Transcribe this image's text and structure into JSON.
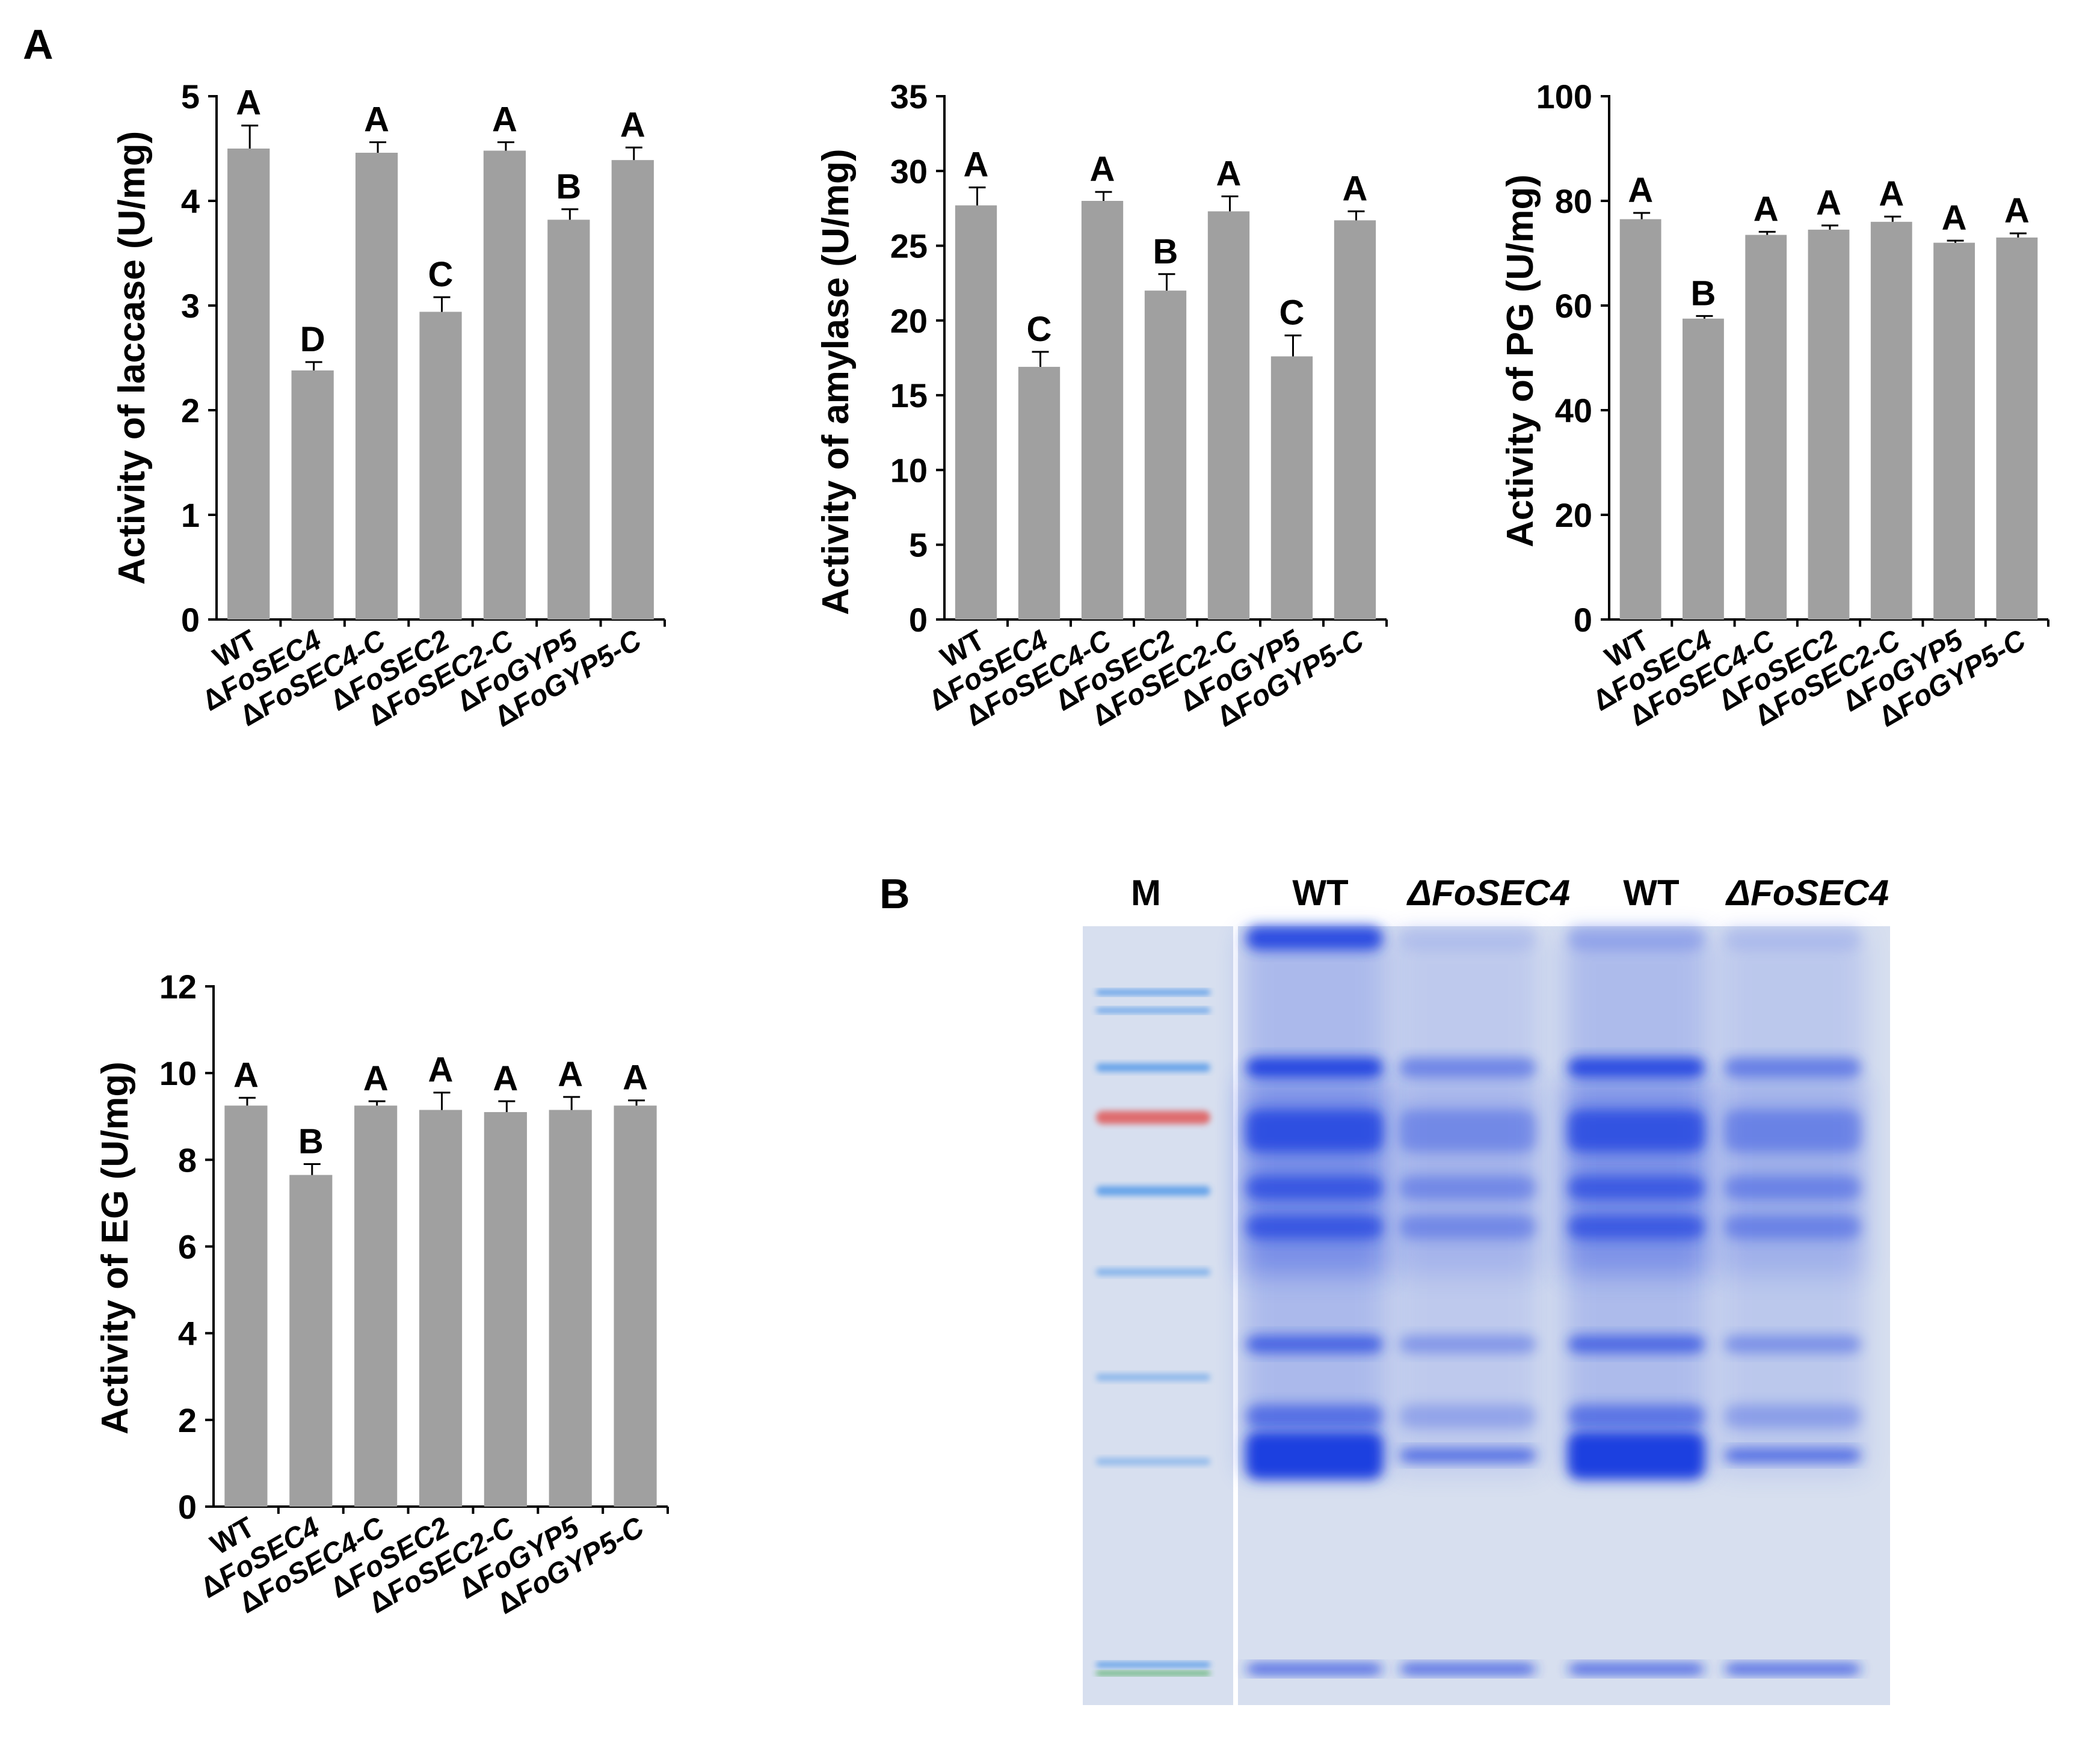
{
  "panels": {
    "a": "A",
    "b": "B"
  },
  "chart_data": [
    {
      "type": "bar",
      "categories": [
        "WT",
        "ΔFoSEC4",
        "ΔFoSEC4-C",
        "ΔFoSEC2",
        "ΔFoSEC2-C",
        "ΔFoGYP5",
        "ΔFoGYP5-C"
      ],
      "values": [
        4.5,
        2.38,
        4.46,
        2.94,
        4.48,
        3.82,
        4.39
      ],
      "errors": [
        0.22,
        0.08,
        0.1,
        0.14,
        0.08,
        0.1,
        0.12
      ],
      "letters": [
        "A",
        "D",
        "A",
        "C",
        "A",
        "B",
        "A"
      ],
      "ylabel": "Activity of laccase (U/mg)",
      "ylim": [
        0,
        5
      ],
      "yticks": [
        0,
        1,
        2,
        3,
        4,
        5
      ],
      "grid": false
    },
    {
      "type": "bar",
      "categories": [
        "WT",
        "ΔFoSEC4",
        "ΔFoSEC4-C",
        "ΔFoSEC2",
        "ΔFoSEC2-C",
        "ΔFoGYP5",
        "ΔFoGYP5-C"
      ],
      "values": [
        27.7,
        16.9,
        28.0,
        22.0,
        27.3,
        17.6,
        26.7
      ],
      "errors": [
        1.2,
        1.0,
        0.6,
        1.1,
        1.0,
        1.4,
        0.6
      ],
      "letters": [
        "A",
        "C",
        "A",
        "B",
        "A",
        "C",
        "A"
      ],
      "ylabel": "Activity of amylase (U/mg)",
      "ylim": [
        0,
        35
      ],
      "yticks": [
        0,
        5,
        10,
        15,
        20,
        25,
        30,
        35
      ],
      "grid": false
    },
    {
      "type": "bar",
      "categories": [
        "WT",
        "ΔFoSEC4",
        "ΔFoSEC4-C",
        "ΔFoSEC2",
        "ΔFoSEC2-C",
        "ΔFoGYP5",
        "ΔFoGYP5-C"
      ],
      "values": [
        76.5,
        57.5,
        73.5,
        74.5,
        76.0,
        72.0,
        73.0
      ],
      "errors": [
        1.2,
        0.5,
        0.6,
        0.8,
        1.0,
        0.4,
        0.8
      ],
      "letters": [
        "A",
        "B",
        "A",
        "A",
        "A",
        "A",
        "A"
      ],
      "ylabel": "Activity of PG (U/mg)",
      "ylim": [
        0,
        100
      ],
      "yticks": [
        0,
        20,
        40,
        60,
        80,
        100
      ],
      "grid": false
    },
    {
      "type": "bar",
      "categories": [
        "WT",
        "ΔFoSEC4",
        "ΔFoSEC4-C",
        "ΔFoSEC2",
        "ΔFoSEC2-C",
        "ΔFoGYP5",
        "ΔFoGYP5-C"
      ],
      "values": [
        9.25,
        7.65,
        9.25,
        9.15,
        9.1,
        9.15,
        9.25
      ],
      "errors": [
        0.18,
        0.25,
        0.1,
        0.4,
        0.25,
        0.3,
        0.12
      ],
      "letters": [
        "A",
        "B",
        "A",
        "A",
        "A",
        "A",
        "A"
      ],
      "ylabel": "Activity of EG (U/mg)",
      "ylim": [
        0,
        12
      ],
      "yticks": [
        0,
        2,
        4,
        6,
        8,
        10,
        12
      ],
      "grid": false
    }
  ],
  "gel": {
    "lanes": [
      "M",
      "WT",
      "ΔFoSEC4",
      "WT",
      "ΔFoSEC4"
    ],
    "colors": {
      "background": "#d7dfef",
      "protein": "#1f3fe0",
      "marker_blue": "#3f8fe8",
      "marker_red": "#e06060",
      "marker_green": "#2fa040"
    }
  }
}
